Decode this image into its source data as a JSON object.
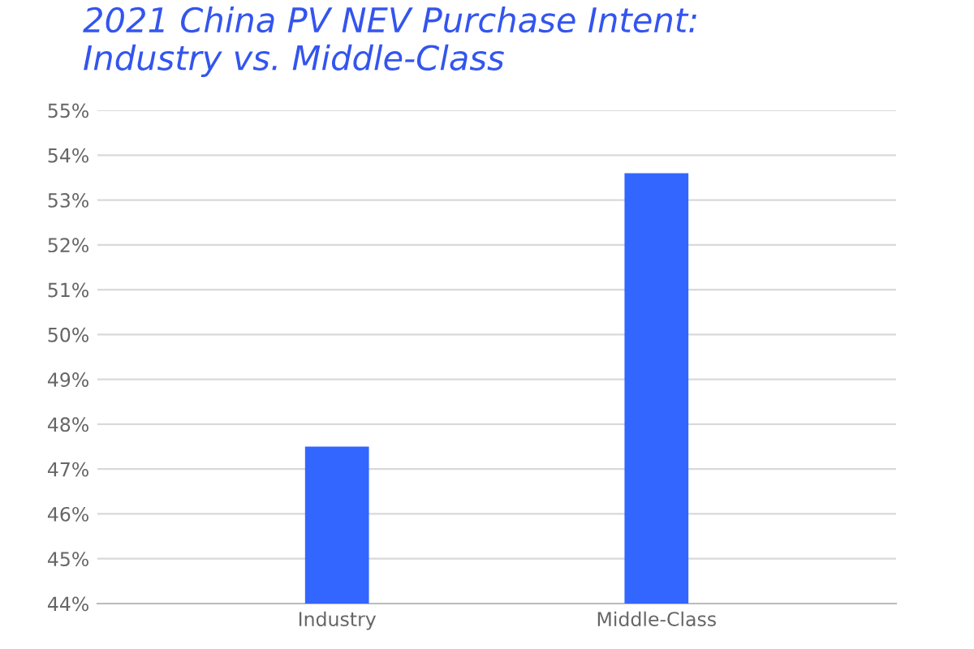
{
  "chart_data": {
    "type": "bar",
    "title": "2021 China PV NEV Purchase Intent:\nIndustry vs. Middle-Class",
    "categories": [
      "Industry",
      "Middle-Class"
    ],
    "values": [
      47.5,
      53.6
    ],
    "color": "#3366ff",
    "ylim": [
      44,
      55
    ],
    "yticks": [
      {
        "value": 44,
        "label": "44%"
      },
      {
        "value": 45,
        "label": "45%"
      },
      {
        "value": 46,
        "label": "46%"
      },
      {
        "value": 47,
        "label": "47%"
      },
      {
        "value": 48,
        "label": "48%"
      },
      {
        "value": 49,
        "label": "49%"
      },
      {
        "value": 50,
        "label": "50%"
      },
      {
        "value": 51,
        "label": "51%"
      },
      {
        "value": 52,
        "label": "52%"
      },
      {
        "value": 53,
        "label": "53%"
      },
      {
        "value": 54,
        "label": "54%"
      },
      {
        "value": 55,
        "label": "55%"
      }
    ],
    "grid": "y"
  }
}
